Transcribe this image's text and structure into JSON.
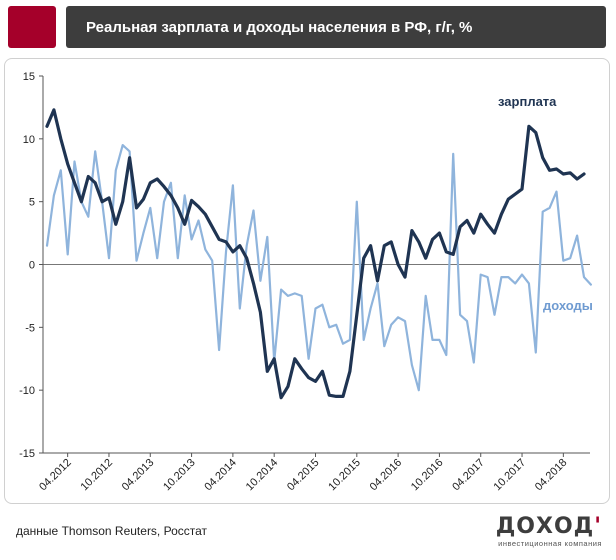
{
  "header": {
    "title": "Реальная зарплата и доходы населения в РФ, г/г, %"
  },
  "footer": {
    "source": "данные Thomson Reuters, Росстат",
    "logo_text": "ДОХОД",
    "logo_mark": "'",
    "logo_subtitle": "инвестиционная компания"
  },
  "colors": {
    "accent": "#a5002a",
    "title_bg": "#3d3d3d",
    "wage_line": "#1f3452",
    "income_line": "#8fb4dc",
    "wage_label": "#1f3452",
    "income_label": "#6f9bd1"
  },
  "chart_data": {
    "type": "line",
    "title": "Реальная зарплата и доходы населения в РФ, г/г, %",
    "ylim": [
      -15,
      15
    ],
    "y_ticks": [
      15,
      10,
      5,
      0,
      -5,
      -10,
      -15
    ],
    "x_tick_labels": [
      "04.2012",
      "10.2012",
      "04.2013",
      "10.2013",
      "04.2014",
      "10.2014",
      "04.2015",
      "10.2015",
      "04.2016",
      "10.2016",
      "04.2017",
      "10.2017",
      "04.2018"
    ],
    "x_start": "01.2012",
    "series": [
      {
        "name": "зарплата",
        "label": "зарплата",
        "values": [
          11.0,
          12.3,
          10.0,
          8.0,
          6.5,
          5.0,
          7.0,
          6.5,
          5.0,
          5.3,
          3.2,
          5.0,
          8.5,
          4.5,
          5.2,
          6.5,
          6.8,
          6.2,
          5.5,
          4.5,
          3.2,
          5.1,
          4.6,
          4.0,
          3.0,
          2.0,
          1.8,
          1.0,
          1.5,
          0.5,
          -1.5,
          -3.8,
          -8.5,
          -7.5,
          -10.6,
          -9.7,
          -7.5,
          -8.3,
          -9.0,
          -9.3,
          -8.5,
          -10.4,
          -10.5,
          -10.5,
          -8.5,
          -4.0,
          0.5,
          1.5,
          -1.3,
          1.5,
          1.8,
          0.0,
          -1.0,
          2.7,
          1.8,
          0.5,
          2.0,
          2.5,
          1.0,
          0.8,
          3.0,
          3.5,
          2.5,
          4.0,
          3.2,
          2.5,
          4.0,
          5.2,
          5.6,
          6.0,
          11.0,
          10.5,
          8.5,
          7.5,
          7.6,
          7.2,
          7.3,
          6.8,
          7.2
        ]
      },
      {
        "name": "доходы",
        "label": "доходы",
        "values": [
          1.5,
          5.5,
          7.5,
          0.8,
          8.2,
          5.0,
          3.8,
          9.0,
          5.0,
          0.5,
          7.5,
          9.5,
          9.0,
          0.3,
          2.5,
          4.5,
          0.5,
          5.0,
          6.5,
          0.5,
          5.5,
          2.0,
          3.5,
          1.2,
          0.3,
          -6.8,
          1.0,
          6.3,
          -3.5,
          1.5,
          4.3,
          -1.3,
          2.2,
          -7.7,
          -2.0,
          -2.5,
          -2.3,
          -2.5,
          -7.5,
          -3.5,
          -3.2,
          -5.0,
          -4.8,
          -6.3,
          -6.0,
          5.0,
          -6.0,
          -3.5,
          -1.5,
          -6.5,
          -4.8,
          -4.2,
          -4.5,
          -8.0,
          -10.0,
          -2.5,
          -6.0,
          -6.0,
          -7.2,
          8.8,
          -4.0,
          -4.5,
          -7.8,
          -0.8,
          -1.0,
          -4.0,
          -1.0,
          -1.0,
          -1.5,
          -0.8,
          -1.5,
          -7.0,
          4.2,
          4.5,
          5.8,
          0.3,
          0.5,
          2.3,
          -1.0,
          -1.6
        ]
      }
    ]
  }
}
